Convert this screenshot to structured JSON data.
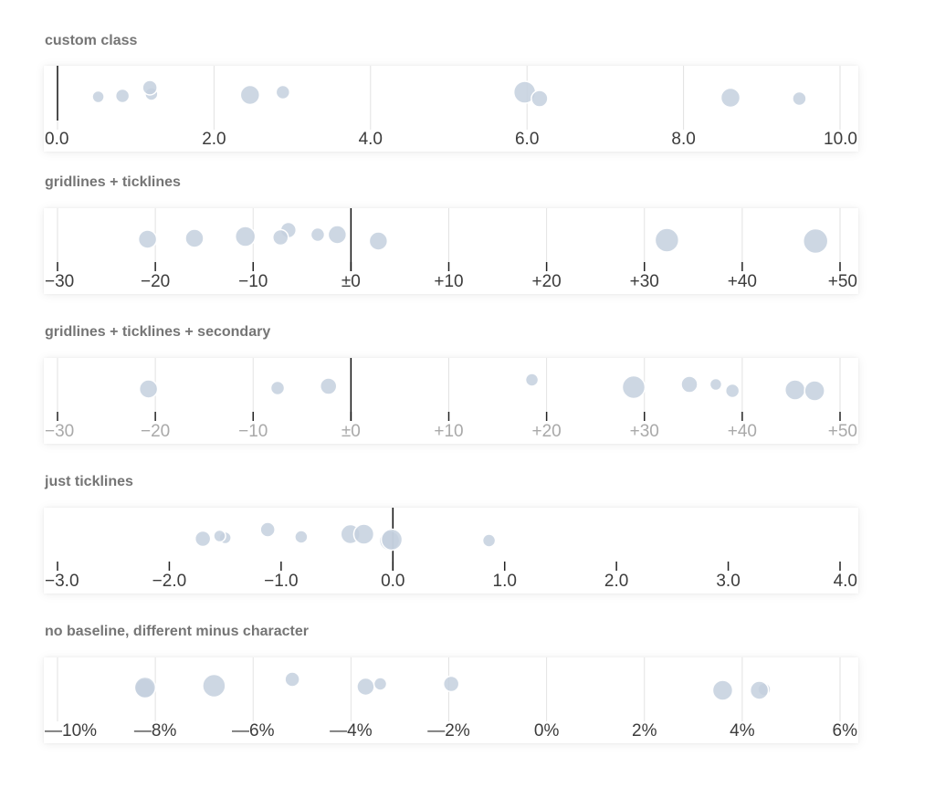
{
  "chart_data": [
    {
      "type": "scatter",
      "title": "custom class",
      "xlim": [
        0,
        10
      ],
      "ticks": [
        0,
        2,
        4,
        6,
        8,
        10
      ],
      "tick_labels": [
        "0.0",
        "2.0",
        "4.0",
        "6.0",
        "8.0",
        "10.0"
      ],
      "baseline": 0,
      "gridlines": true,
      "ticklines": false,
      "secondary_labels": false,
      "points": [
        {
          "x": 0.52,
          "size": 6.5
        },
        {
          "x": 0.83,
          "size": 7.5
        },
        {
          "x": 1.2,
          "size": 7
        },
        {
          "x": 1.18,
          "size": 8
        },
        {
          "x": 2.46,
          "size": 10.5
        },
        {
          "x": 2.88,
          "size": 7.5
        },
        {
          "x": 5.97,
          "size": 12
        },
        {
          "x": 6.16,
          "size": 9
        },
        {
          "x": 8.6,
          "size": 10.5
        },
        {
          "x": 9.48,
          "size": 7.5
        }
      ]
    },
    {
      "type": "scatter",
      "title": "gridlines + ticklines",
      "xlim": [
        -30,
        50
      ],
      "ticks": [
        -30,
        -20,
        -10,
        0,
        10,
        20,
        30,
        40,
        50
      ],
      "tick_labels": [
        "−30",
        "−20",
        "−10",
        "±0",
        "+10",
        "+20",
        "+30",
        "+40",
        "+50"
      ],
      "baseline": 0,
      "gridlines": true,
      "ticklines": true,
      "secondary_labels": false,
      "points": [
        {
          "x": -20.8,
          "size": 10
        },
        {
          "x": -16,
          "size": 10
        },
        {
          "x": -10.8,
          "size": 11
        },
        {
          "x": -6.4,
          "size": 8.5
        },
        {
          "x": -7.2,
          "size": 8.5
        },
        {
          "x": -3.4,
          "size": 7.5
        },
        {
          "x": -1.4,
          "size": 10
        },
        {
          "x": 2.8,
          "size": 10
        },
        {
          "x": 32.3,
          "size": 13
        },
        {
          "x": 47.5,
          "size": 13.5
        }
      ]
    },
    {
      "type": "scatter",
      "title": "gridlines + ticklines + secondary",
      "xlim": [
        -30,
        50
      ],
      "ticks": [
        -30,
        -20,
        -10,
        0,
        10,
        20,
        30,
        40,
        50
      ],
      "tick_labels": [
        "−30",
        "−20",
        "−10",
        "±0",
        "+10",
        "+20",
        "+30",
        "+40",
        "+50"
      ],
      "baseline": 0,
      "gridlines": true,
      "ticklines": true,
      "secondary_labels": true,
      "points": [
        {
          "x": -20.7,
          "size": 10
        },
        {
          "x": -7.5,
          "size": 7.5
        },
        {
          "x": -2.3,
          "size": 9
        },
        {
          "x": 18.5,
          "size": 7
        },
        {
          "x": 28.9,
          "size": 12.5
        },
        {
          "x": 34.6,
          "size": 9
        },
        {
          "x": 37.3,
          "size": 6.5
        },
        {
          "x": 39,
          "size": 7.5
        },
        {
          "x": 45.4,
          "size": 11
        },
        {
          "x": 47.4,
          "size": 11
        }
      ]
    },
    {
      "type": "scatter",
      "title": "just ticklines",
      "xlim": [
        -3,
        4
      ],
      "ticks": [
        -3,
        -2,
        -1,
        0,
        1,
        2,
        3,
        4
      ],
      "tick_labels": [
        "−3.0",
        "−2.0",
        "−1.0",
        "0.0",
        "1.0",
        "2.0",
        "3.0",
        "4.0"
      ],
      "baseline": 0,
      "gridlines": false,
      "ticklines": true,
      "secondary_labels": false,
      "points": [
        {
          "x": -1.7,
          "size": 8.5
        },
        {
          "x": -1.5,
          "size": 6.5
        },
        {
          "x": -1.55,
          "size": 6.5
        },
        {
          "x": -1.12,
          "size": 8
        },
        {
          "x": -0.82,
          "size": 7
        },
        {
          "x": -0.38,
          "size": 10.5
        },
        {
          "x": -0.26,
          "size": 11
        },
        {
          "x": -0.03,
          "size": 11
        },
        {
          "x": -0.01,
          "size": 11.5
        },
        {
          "x": 0.86,
          "size": 7
        }
      ]
    },
    {
      "type": "scatter",
      "title": "no baseline, different minus character",
      "xlim": [
        -10,
        6
      ],
      "ticks": [
        -10,
        -8,
        -6,
        -4,
        -2,
        0,
        2,
        4,
        6
      ],
      "tick_labels": [
        "—10%",
        "—8%",
        "—6%",
        "—4%",
        "—2%",
        "0%",
        "2%",
        "4%",
        "6%"
      ],
      "baseline": null,
      "gridlines": true,
      "ticklines": false,
      "secondary_labels": false,
      "points": [
        {
          "x": -8.22,
          "size": 11
        },
        {
          "x": -8.21,
          "size": 11.5
        },
        {
          "x": -6.8,
          "size": 12.5
        },
        {
          "x": -5.2,
          "size": 8
        },
        {
          "x": -3.7,
          "size": 9.5
        },
        {
          "x": -3.4,
          "size": 7
        },
        {
          "x": -1.95,
          "size": 8.5
        },
        {
          "x": 3.6,
          "size": 11
        },
        {
          "x": 4.45,
          "size": 7
        },
        {
          "x": 4.35,
          "size": 10
        }
      ]
    }
  ]
}
